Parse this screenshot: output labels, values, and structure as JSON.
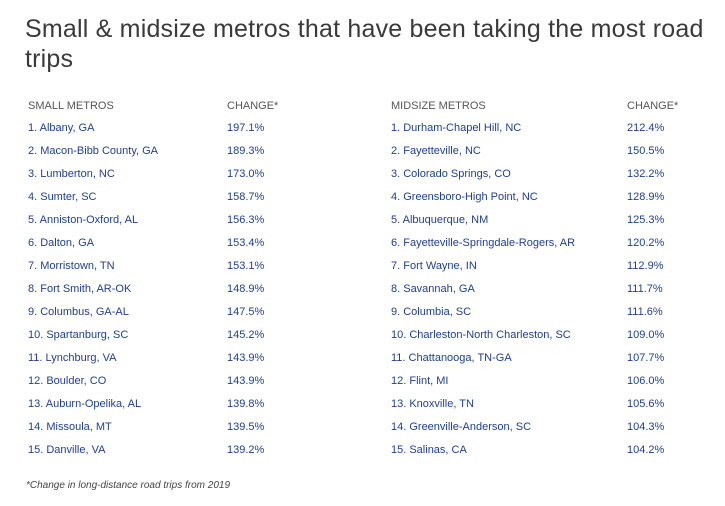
{
  "title": "Small & midsize metros that have been taking the most road trips",
  "small": {
    "header_name": "SMALL METROS",
    "header_value": "CHANGE*",
    "rows": [
      {
        "name": "1. Albany, GA",
        "value": "197.1%"
      },
      {
        "name": "2. Macon-Bibb County, GA",
        "value": "189.3%"
      },
      {
        "name": "3. Lumberton, NC",
        "value": "173.0%"
      },
      {
        "name": "4. Sumter, SC",
        "value": "158.7%"
      },
      {
        "name": "5. Anniston-Oxford, AL",
        "value": "156.3%"
      },
      {
        "name": "6. Dalton, GA",
        "value": "153.4%"
      },
      {
        "name": "7. Morristown, TN",
        "value": "153.1%"
      },
      {
        "name": "8. Fort Smith, AR-OK",
        "value": "148.9%"
      },
      {
        "name": "9. Columbus, GA-AL",
        "value": "147.5%"
      },
      {
        "name": "10. Spartanburg, SC",
        "value": "145.2%"
      },
      {
        "name": "11. Lynchburg, VA",
        "value": "143.9%"
      },
      {
        "name": "12. Boulder, CO",
        "value": "143.9%"
      },
      {
        "name": "13. Auburn-Opelika, AL",
        "value": "139.8%"
      },
      {
        "name": "14. Missoula, MT",
        "value": "139.5%"
      },
      {
        "name": "15. Danville, VA",
        "value": "139.2%"
      }
    ]
  },
  "mid": {
    "header_name": "MIDSIZE METROS",
    "header_value": "CHANGE*",
    "rows": [
      {
        "name": "1. Durham-Chapel Hill, NC",
        "value": "212.4%"
      },
      {
        "name": "2. Fayetteville, NC",
        "value": "150.5%"
      },
      {
        "name": "3. Colorado Springs, CO",
        "value": "132.2%"
      },
      {
        "name": "4. Greensboro-High Point, NC",
        "value": "128.9%"
      },
      {
        "name": "5. Albuquerque, NM",
        "value": "125.3%"
      },
      {
        "name": "6. Fayetteville-Springdale-Rogers, AR",
        "value": "120.2%"
      },
      {
        "name": "7. Fort Wayne, IN",
        "value": "112.9%"
      },
      {
        "name": "8. Savannah, GA",
        "value": "111.7%"
      },
      {
        "name": "9. Columbia, SC",
        "value": "111.6%"
      },
      {
        "name": "10. Charleston-North Charleston, SC",
        "value": "109.0%"
      },
      {
        "name": "11. Chattanooga, TN-GA",
        "value": "107.7%"
      },
      {
        "name": "12. Flint, MI",
        "value": "106.0%"
      },
      {
        "name": "13. Knoxville, TN",
        "value": "105.6%"
      },
      {
        "name": "14. Greenville-Anderson, SC",
        "value": "104.3%"
      },
      {
        "name": "15. Salinas, CA",
        "value": "104.2%"
      }
    ]
  },
  "footnote": "*Change in long-distance road trips from 2019",
  "colors": {
    "link": "#1f3f8f",
    "title": "#3a3a3a",
    "header": "#555555"
  }
}
